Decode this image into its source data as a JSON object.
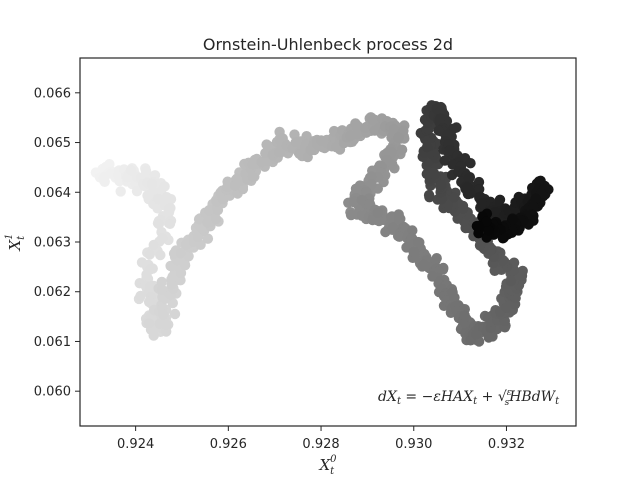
{
  "chart_data": {
    "type": "scatter",
    "title": "Ornstein-Uhlenbeck process 2d",
    "xlabel": "X_t^0",
    "ylabel": "X_t^1",
    "xlim": [
      0.9228,
      0.9335
    ],
    "ylim": [
      0.0593,
      0.0667
    ],
    "xticks": [
      0.924,
      0.926,
      0.928,
      0.93,
      0.932
    ],
    "xtick_labels": [
      "0.924",
      "0.926",
      "0.928",
      "0.930",
      "0.932"
    ],
    "yticks": [
      0.06,
      0.061,
      0.062,
      0.063,
      0.064,
      0.065,
      0.066
    ],
    "ytick_labels": [
      "0.060",
      "0.061",
      "0.062",
      "0.063",
      "0.064",
      "0.065",
      "0.066"
    ],
    "grid": false,
    "color_encoding": "grayscale by time: light gray (start) to black (end)",
    "annotation": "dXt = −εHAXt + √(ε/s)HBdWt",
    "trajectory_waypoints": [
      [
        0.9232,
        0.0644
      ],
      [
        0.9238,
        0.0643
      ],
      [
        0.9243,
        0.0642
      ],
      [
        0.9247,
        0.0636
      ],
      [
        0.9242,
        0.0622
      ],
      [
        0.9245,
        0.0612
      ],
      [
        0.9247,
        0.062
      ],
      [
        0.925,
        0.0628
      ],
      [
        0.9255,
        0.0633
      ],
      [
        0.9258,
        0.0638
      ],
      [
        0.9262,
        0.0642
      ],
      [
        0.9267,
        0.0646
      ],
      [
        0.9272,
        0.065
      ],
      [
        0.9278,
        0.0649
      ],
      [
        0.9284,
        0.065
      ],
      [
        0.9288,
        0.0652
      ],
      [
        0.9293,
        0.0654
      ],
      [
        0.9297,
        0.0652
      ],
      [
        0.9295,
        0.0646
      ],
      [
        0.929,
        0.0641
      ],
      [
        0.9287,
        0.0637
      ],
      [
        0.9293,
        0.0635
      ],
      [
        0.9298,
        0.0632
      ],
      [
        0.9302,
        0.0627
      ],
      [
        0.9307,
        0.0621
      ],
      [
        0.931,
        0.0615
      ],
      [
        0.9313,
        0.0611
      ],
      [
        0.9317,
        0.0613
      ],
      [
        0.932,
        0.0617
      ],
      [
        0.9322,
        0.0623
      ],
      [
        0.9318,
        0.0627
      ],
      [
        0.9314,
        0.0631
      ],
      [
        0.931,
        0.0636
      ],
      [
        0.9306,
        0.064
      ],
      [
        0.9304,
        0.0645
      ],
      [
        0.9303,
        0.0651
      ],
      [
        0.9305,
        0.0657
      ],
      [
        0.9307,
        0.0653
      ],
      [
        0.9309,
        0.0647
      ],
      [
        0.9312,
        0.0641
      ],
      [
        0.9316,
        0.0637
      ],
      [
        0.932,
        0.0635
      ],
      [
        0.9324,
        0.0638
      ],
      [
        0.9328,
        0.0641
      ],
      [
        0.9324,
        0.0634
      ],
      [
        0.9319,
        0.0632
      ],
      [
        0.9314,
        0.0634
      ]
    ]
  }
}
